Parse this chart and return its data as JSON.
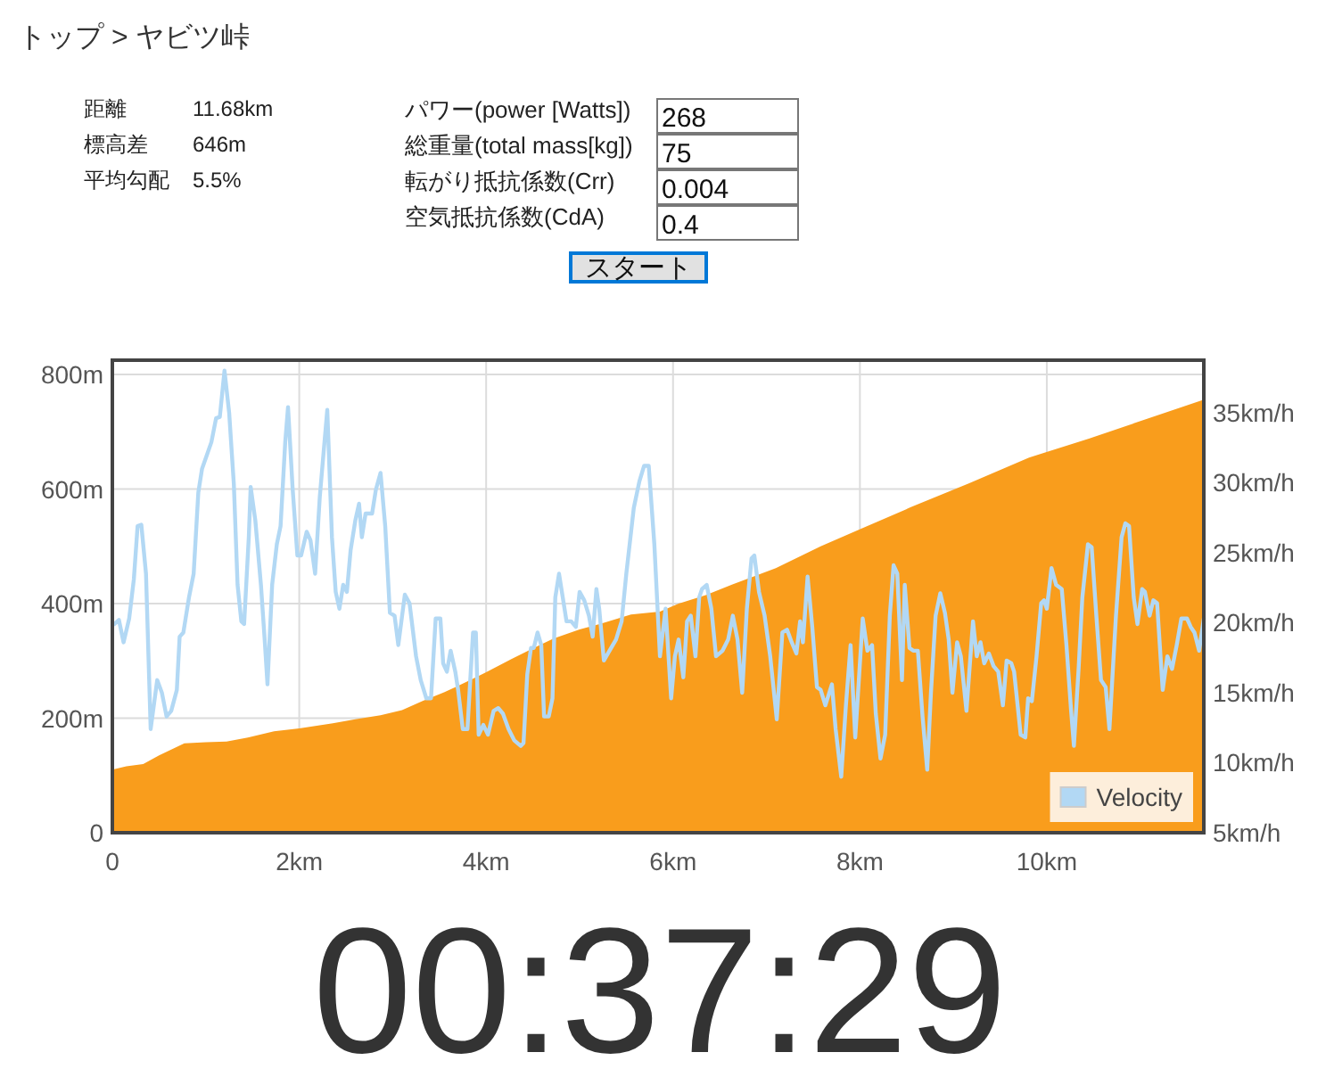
{
  "chart_data": {
    "type": "area",
    "title": "トップ > ヤビツ峠",
    "annotations": [
      "距離",
      "11.68km",
      "標高差",
      "646m",
      "平均勾配",
      "5.5%",
      "パワー(power [Watts])",
      "268",
      "総重量(total mass[kg])",
      "75",
      "転がり抵抗係数(Crr)",
      "0.004",
      "空気抵抗係数(CdA)",
      "0.4",
      "スタート",
      "00:37:29"
    ],
    "xlim": [
      0,
      11.68
    ],
    "xticks": [
      0,
      {
        "value": 2,
        "label": "2km"
      },
      {
        "value": 4,
        "label": "4km"
      },
      {
        "value": 6,
        "label": "6km"
      },
      {
        "value": 8,
        "label": "8km"
      },
      {
        "value": 10,
        "label": "10km"
      }
    ],
    "ylim": [
      0,
      825
    ],
    "yticks": [
      0,
      {
        "value": 200,
        "label": "200m"
      },
      {
        "value": 400,
        "label": "400m"
      },
      {
        "value": 600,
        "label": "600m"
      },
      {
        "value": 800,
        "label": "800m"
      }
    ],
    "y2lim": [
      5,
      38.75
    ],
    "y2ticks": [
      {
        "value": 5,
        "label": "5km/h"
      },
      {
        "value": 10,
        "label": "10km/h"
      },
      {
        "value": 15,
        "label": "15km/h"
      },
      {
        "value": 20,
        "label": "20km/h"
      },
      {
        "value": 25,
        "label": "25km/h"
      },
      {
        "value": 30,
        "label": "30km/h"
      },
      {
        "value": 35,
        "label": "35km/h"
      }
    ],
    "grid": true,
    "legend": "bottom right",
    "series": [
      {
        "color": "#f99d1c",
        "x": [
          0,
          0.15,
          0.33,
          0.5,
          0.77,
          1.0,
          1.22,
          1.45,
          1.73,
          2.0,
          2.36,
          2.6,
          2.87,
          3.1,
          3.32,
          3.55,
          3.76,
          4.0,
          4.27,
          4.5,
          4.72,
          5.0,
          5.23,
          5.55,
          5.86,
          6.06,
          6.35,
          6.63,
          7.1,
          7.58,
          8.03,
          8.54,
          9.17,
          9.81,
          10.45,
          11.08,
          11.68
        ],
        "values": [
          110,
          116,
          120,
          135,
          156,
          158,
          159,
          166,
          177,
          182,
          191,
          198,
          205,
          214,
          230,
          245,
          261,
          280,
          303,
          322,
          339,
          355,
          365,
          381,
          386,
          400,
          415,
          433,
          462,
          500,
          532,
          568,
          610,
          655,
          688,
          723,
          756
        ]
      },
      {
        "type": "line",
        "name": "Velocity",
        "color": "#b2d8f4",
        "axis": "y2",
        "x": [
          0.02,
          0.07,
          0.12,
          0.18,
          0.23,
          0.27,
          0.31,
          0.36,
          0.41,
          0.48,
          0.53,
          0.58,
          0.63,
          0.69,
          0.72,
          0.76,
          0.82,
          0.87,
          0.92,
          0.96,
          1.06,
          1.11,
          1.15,
          1.2,
          1.25,
          1.3,
          1.34,
          1.38,
          1.41,
          1.46,
          1.48,
          1.53,
          1.59,
          1.63,
          1.66,
          1.71,
          1.76,
          1.8,
          1.85,
          1.88,
          1.93,
          1.98,
          2.02,
          2.08,
          2.12,
          2.17,
          2.22,
          2.27,
          2.3,
          2.35,
          2.39,
          2.43,
          2.47,
          2.51,
          2.55,
          2.6,
          2.64,
          2.67,
          2.71,
          2.78,
          2.82,
          2.87,
          2.92,
          2.97,
          3.02,
          3.06,
          3.13,
          3.18,
          3.25,
          3.3,
          3.36,
          3.41,
          3.46,
          3.51,
          3.54,
          3.58,
          3.62,
          3.67,
          3.7,
          3.75,
          3.8,
          3.83,
          3.86,
          3.89,
          3.92,
          3.97,
          4.02,
          4.08,
          4.13,
          4.18,
          4.24,
          4.3,
          4.37,
          4.4,
          4.44,
          4.48,
          4.51,
          4.55,
          4.59,
          4.62,
          4.67,
          4.71,
          4.74,
          4.78,
          4.82,
          4.86,
          4.91,
          4.96,
          5.0,
          5.05,
          5.1,
          5.14,
          5.18,
          5.21,
          5.26,
          5.32,
          5.39,
          5.45,
          5.5,
          5.58,
          5.64,
          5.69,
          5.74,
          5.8,
          5.86,
          5.92,
          5.98,
          6.02,
          6.06,
          6.11,
          6.15,
          6.19,
          6.24,
          6.28,
          6.31,
          6.36,
          6.41,
          6.46,
          6.53,
          6.59,
          6.64,
          6.69,
          6.74,
          6.79,
          6.84,
          6.87,
          6.92,
          6.98,
          7.04,
          7.11,
          7.17,
          7.22,
          7.27,
          7.32,
          7.36,
          7.39,
          7.44,
          7.49,
          7.54,
          7.58,
          7.63,
          7.7,
          7.74,
          7.8,
          7.85,
          7.9,
          7.95,
          7.98,
          8.03,
          8.08,
          8.13,
          8.17,
          8.22,
          8.27,
          8.32,
          8.36,
          8.4,
          8.45,
          8.48,
          8.53,
          8.57,
          8.62,
          8.67,
          8.72,
          8.76,
          8.81,
          8.86,
          8.91,
          8.95,
          8.99,
          9.04,
          9.08,
          9.14,
          9.21,
          9.25,
          9.29,
          9.33,
          9.38,
          9.43,
          9.48,
          9.53,
          9.57,
          9.62,
          9.65,
          9.72,
          9.77,
          9.8,
          9.84,
          9.89,
          9.94,
          9.97,
          10.0,
          10.05,
          10.1,
          10.16,
          10.21,
          10.26,
          10.29,
          10.34,
          10.38,
          10.44,
          10.48,
          10.53,
          10.58,
          10.63,
          10.67,
          10.74,
          10.8,
          10.84,
          10.88,
          10.93,
          10.97,
          11.02,
          11.05,
          11.1,
          11.14,
          11.18,
          11.24,
          11.29,
          11.34,
          11.39,
          11.44,
          11.5,
          11.54,
          11.58,
          11.63,
          11.68
        ],
        "values": [
          19.9,
          20.2,
          18.6,
          20.3,
          23.1,
          26.9,
          27.0,
          23.5,
          12.4,
          15.9,
          15.0,
          13.3,
          13.7,
          15.2,
          19.0,
          19.3,
          21.8,
          23.5,
          29.3,
          31.0,
          32.9,
          34.6,
          34.7,
          38.0,
          35.0,
          29.9,
          22.7,
          20.1,
          19.9,
          26.1,
          29.7,
          27.3,
          22.7,
          18.8,
          15.6,
          22.7,
          25.6,
          26.9,
          32.9,
          35.4,
          29.5,
          24.8,
          24.8,
          26.5,
          25.9,
          23.5,
          29.0,
          32.9,
          35.2,
          26.1,
          22.2,
          21.0,
          22.7,
          22.2,
          25.2,
          27.3,
          28.5,
          26.1,
          27.8,
          27.8,
          29.5,
          30.7,
          26.9,
          20.7,
          20.5,
          18.4,
          22.0,
          21.4,
          17.6,
          15.9,
          14.6,
          14.6,
          20.3,
          20.3,
          17.1,
          16.5,
          18.0,
          16.5,
          15.2,
          12.4,
          12.4,
          15.9,
          19.3,
          19.3,
          12.0,
          12.7,
          12.0,
          13.7,
          13.9,
          13.5,
          12.4,
          11.6,
          11.2,
          11.4,
          16.3,
          18.2,
          18.2,
          19.3,
          18.4,
          13.3,
          13.3,
          14.6,
          21.8,
          23.5,
          21.8,
          20.1,
          20.1,
          19.7,
          22.2,
          21.6,
          20.5,
          19.0,
          22.4,
          21.0,
          17.3,
          18.0,
          18.8,
          20.1,
          23.5,
          28.2,
          30.1,
          31.2,
          31.2,
          25.6,
          17.6,
          21.0,
          14.6,
          17.6,
          18.8,
          16.1,
          20.1,
          20.5,
          17.6,
          21.8,
          22.4,
          22.7,
          21.0,
          17.6,
          18.0,
          18.8,
          20.5,
          18.8,
          15.0,
          21.0,
          24.6,
          24.8,
          22.2,
          20.5,
          17.6,
          13.1,
          19.3,
          19.5,
          18.6,
          17.8,
          20.1,
          18.6,
          23.3,
          19.7,
          15.4,
          15.2,
          14.1,
          15.6,
          12.4,
          9.0,
          14.1,
          18.4,
          11.8,
          15.0,
          20.3,
          18.0,
          18.4,
          13.5,
          10.3,
          12.0,
          20.5,
          24.1,
          23.5,
          15.9,
          22.7,
          18.2,
          18.0,
          18.0,
          13.3,
          9.5,
          15.0,
          20.5,
          22.1,
          20.7,
          18.8,
          15.0,
          18.6,
          17.6,
          13.7,
          20.1,
          17.6,
          18.6,
          17.1,
          17.8,
          16.9,
          16.5,
          14.1,
          17.3,
          17.1,
          16.5,
          12.0,
          11.8,
          14.6,
          14.4,
          17.6,
          21.4,
          21.6,
          21.0,
          23.9,
          22.7,
          22.4,
          18.4,
          13.7,
          11.2,
          16.7,
          21.8,
          25.6,
          25.4,
          20.5,
          15.9,
          15.4,
          12.4,
          20.5,
          26.1,
          27.1,
          26.9,
          21.8,
          19.9,
          22.4,
          22.2,
          20.5,
          21.6,
          21.4,
          15.2,
          17.6,
          16.7,
          18.4,
          20.3,
          20.3,
          19.7,
          19.3,
          18.0,
          20.3
        ]
      }
    ]
  }
}
